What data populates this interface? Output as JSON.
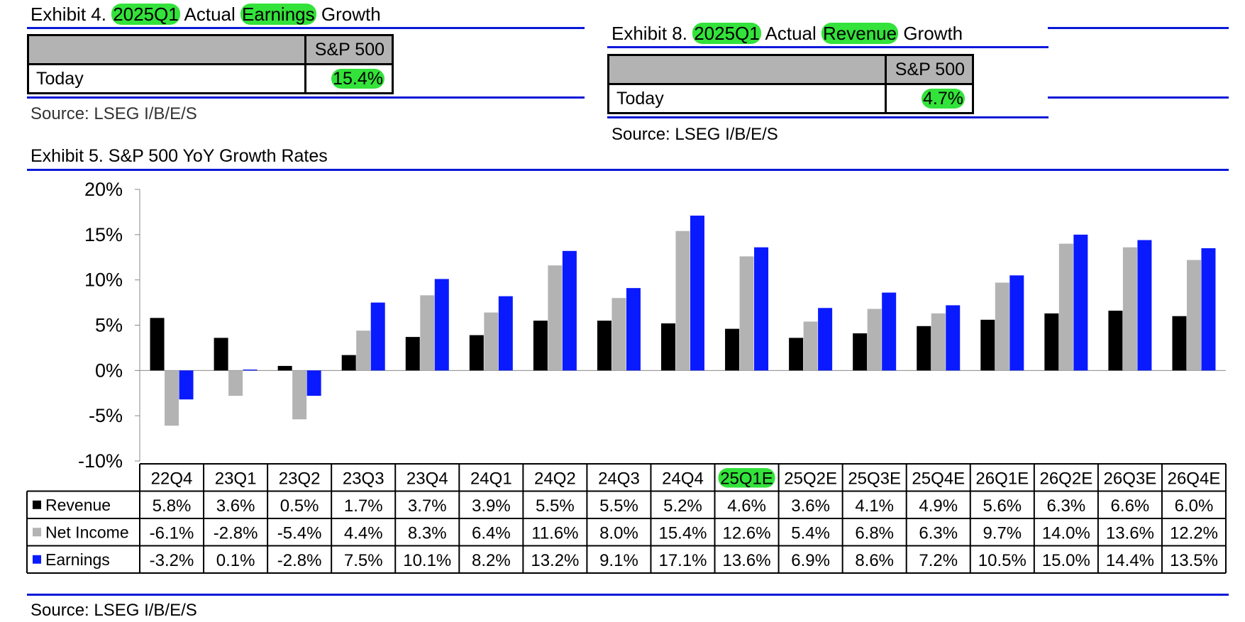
{
  "exhibit4": {
    "title_prefix": "Exhibit 4.",
    "title_period": "2025Q1",
    "title_actual": "Actual",
    "title_metric": "Earnings",
    "title_suffix": "Growth",
    "column_header": "S&P 500",
    "row_label": "Today",
    "value": "15.4%",
    "source": "Source: LSEG I/B/E/S"
  },
  "exhibit8": {
    "title_prefix": "Exhibit 8.",
    "title_period": "2025Q1",
    "title_actual": "Actual",
    "title_metric": "Revenue",
    "title_suffix": "Growth",
    "column_header": "S&P 500",
    "row_label": "Today",
    "value": "4.7%",
    "source": "Source: LSEG I/B/E/S"
  },
  "exhibit5": {
    "title": "Exhibit 5.  S&P 500 YoY Growth Rates",
    "source": "Source: LSEG I/B/E/S",
    "highlighted_category": "25Q1E"
  },
  "colors": {
    "revenue": "#000000",
    "net_income": "#b3b3b3",
    "earnings": "#0a1aff",
    "rule": "#0a1ad8",
    "highlight": "#33e23a"
  },
  "chart_data": {
    "type": "bar",
    "title": "",
    "xlabel": "",
    "ylabel": "",
    "ylim": [
      -10,
      20
    ],
    "yticks": [
      "20%",
      "15%",
      "10%",
      "5%",
      "0%",
      "-5%",
      "-10%"
    ],
    "ytick_values": [
      20,
      15,
      10,
      5,
      0,
      -5,
      -10
    ],
    "grid": false,
    "legend": "data-table",
    "categories": [
      "22Q4",
      "23Q1",
      "23Q2",
      "23Q3",
      "23Q4",
      "24Q1",
      "24Q2",
      "24Q3",
      "24Q4",
      "25Q1E",
      "25Q2E",
      "25Q3E",
      "25Q4E",
      "26Q1E",
      "26Q2E",
      "26Q3E",
      "26Q4E"
    ],
    "series": [
      {
        "name": "Revenue",
        "color_key": "revenue",
        "values": [
          5.8,
          3.6,
          0.5,
          1.7,
          3.7,
          3.9,
          5.5,
          5.5,
          5.2,
          4.6,
          3.6,
          4.1,
          4.9,
          5.6,
          6.3,
          6.6,
          6.0
        ],
        "labels": [
          "5.8%",
          "3.6%",
          "0.5%",
          "1.7%",
          "3.7%",
          "3.9%",
          "5.5%",
          "5.5%",
          "5.2%",
          "4.6%",
          "3.6%",
          "4.1%",
          "4.9%",
          "5.6%",
          "6.3%",
          "6.6%",
          "6.0%"
        ]
      },
      {
        "name": "Net Income",
        "color_key": "net_income",
        "values": [
          -6.1,
          -2.8,
          -5.4,
          4.4,
          8.3,
          6.4,
          11.6,
          8.0,
          15.4,
          12.6,
          5.4,
          6.8,
          6.3,
          9.7,
          14.0,
          13.6,
          12.2
        ],
        "labels": [
          "-6.1%",
          "-2.8%",
          "-5.4%",
          "4.4%",
          "8.3%",
          "6.4%",
          "11.6%",
          "8.0%",
          "15.4%",
          "12.6%",
          "5.4%",
          "6.8%",
          "6.3%",
          "9.7%",
          "14.0%",
          "13.6%",
          "12.2%"
        ]
      },
      {
        "name": "Earnings",
        "color_key": "earnings",
        "values": [
          -3.2,
          0.1,
          -2.8,
          7.5,
          10.1,
          8.2,
          13.2,
          9.1,
          17.1,
          13.6,
          6.9,
          8.6,
          7.2,
          10.5,
          15.0,
          14.4,
          13.5
        ],
        "labels": [
          "-3.2%",
          "0.1%",
          "-2.8%",
          "7.5%",
          "10.1%",
          "8.2%",
          "13.2%",
          "9.1%",
          "17.1%",
          "13.6%",
          "6.9%",
          "8.6%",
          "7.2%",
          "10.5%",
          "15.0%",
          "14.4%",
          "13.5%"
        ]
      }
    ]
  }
}
